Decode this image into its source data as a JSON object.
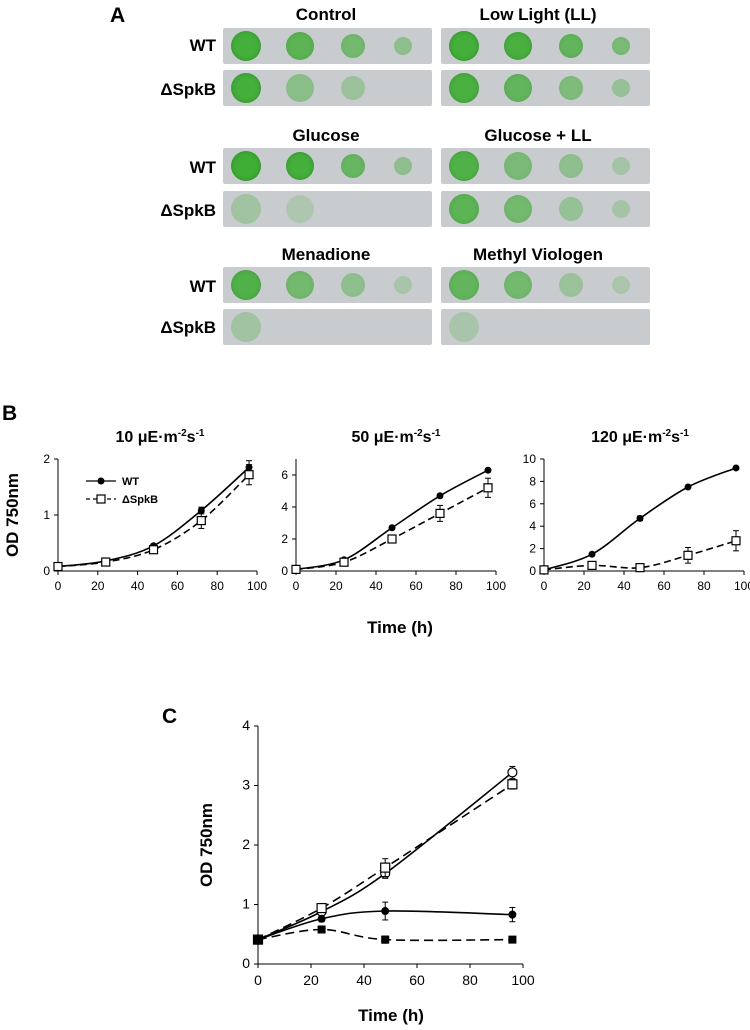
{
  "panel_a": {
    "letter": "A",
    "strains": [
      "WT",
      "ΔSpkB"
    ],
    "conditions": [
      "Control",
      "Low Light (LL)",
      "Glucose",
      "Glucose + LL",
      "Menadione",
      "Methyl Viologen"
    ],
    "growth": [
      [
        [
          0.95,
          0.75,
          0.55,
          0.3
        ],
        [
          0.95,
          0.35,
          0.2,
          0.0
        ]
      ],
      [
        [
          0.95,
          0.9,
          0.7,
          0.5
        ],
        [
          0.9,
          0.7,
          0.45,
          0.25
        ]
      ],
      [
        [
          1.0,
          0.95,
          0.65,
          0.3
        ],
        [
          0.15,
          0.05,
          0.0,
          0.0
        ]
      ],
      [
        [
          0.85,
          0.5,
          0.3,
          0.12
        ],
        [
          0.75,
          0.55,
          0.25,
          0.12
        ]
      ],
      [
        [
          0.85,
          0.55,
          0.3,
          0.1
        ],
        [
          0.15,
          0.0,
          0.0,
          0.0
        ]
      ],
      [
        [
          0.7,
          0.55,
          0.2,
          0.08
        ],
        [
          0.1,
          0.0,
          0.0,
          0.0
        ]
      ]
    ],
    "colors": {
      "spot": "#3fae35",
      "plate": "#c9ccce"
    }
  },
  "chart_data": [
    {
      "panel": "B",
      "type": "line",
      "title_parts": [
        "10 μE·m",
        "-2",
        "s",
        "-1"
      ],
      "xlabel": "Time (h)",
      "ylabel": "OD 750nm",
      "xlim": [
        0,
        100
      ],
      "ylim": [
        0,
        2
      ],
      "xticks": [
        0,
        20,
        40,
        60,
        80,
        100
      ],
      "yticks": [
        0,
        1,
        2
      ],
      "legend": [
        "WT",
        "ΔSpkB"
      ],
      "series": [
        {
          "name": "WT",
          "marker": "filled-circle",
          "dash": false,
          "x": [
            0,
            24,
            48,
            72,
            96
          ],
          "y": [
            0.08,
            0.18,
            0.45,
            1.08,
            1.85
          ],
          "err": [
            0.02,
            0.02,
            0.03,
            0.06,
            0.12
          ]
        },
        {
          "name": "ΔSpkB",
          "marker": "open-square",
          "dash": true,
          "x": [
            0,
            24,
            48,
            72,
            96
          ],
          "y": [
            0.08,
            0.16,
            0.38,
            0.9,
            1.72
          ],
          "err": [
            0.02,
            0.02,
            0.03,
            0.14,
            0.18
          ]
        }
      ]
    },
    {
      "panel": "B",
      "type": "line",
      "title_parts": [
        "50 μE·m",
        "-2",
        "s",
        "-1"
      ],
      "xlabel": "Time (h)",
      "ylabel": "",
      "xlim": [
        0,
        100
      ],
      "ylim": [
        0,
        7
      ],
      "xticks": [
        0,
        20,
        40,
        60,
        80,
        100
      ],
      "yticks": [
        0,
        2,
        4,
        6
      ],
      "series": [
        {
          "name": "WT",
          "marker": "filled-circle",
          "dash": false,
          "x": [
            0,
            24,
            48,
            72,
            96
          ],
          "y": [
            0.1,
            0.7,
            2.7,
            4.7,
            6.3
          ],
          "err": [
            0.05,
            0.05,
            0.1,
            0.1,
            0.1
          ]
        },
        {
          "name": "ΔSpkB",
          "marker": "open-square",
          "dash": true,
          "x": [
            0,
            24,
            48,
            72,
            96
          ],
          "y": [
            0.1,
            0.55,
            2.0,
            3.6,
            5.2
          ],
          "err": [
            0.05,
            0.1,
            0.2,
            0.5,
            0.6
          ]
        }
      ]
    },
    {
      "panel": "B",
      "type": "line",
      "title_parts": [
        "120 μE·m",
        "-2",
        "s",
        "-1"
      ],
      "xlabel": "Time (h)",
      "ylabel": "",
      "xlim": [
        0,
        100
      ],
      "ylim": [
        0,
        10
      ],
      "xticks": [
        0,
        20,
        40,
        60,
        80,
        100
      ],
      "yticks": [
        0,
        2,
        4,
        6,
        8,
        10
      ],
      "series": [
        {
          "name": "WT",
          "marker": "filled-circle",
          "dash": false,
          "x": [
            0,
            24,
            48,
            72,
            96
          ],
          "y": [
            0.1,
            1.5,
            4.7,
            7.5,
            9.2
          ],
          "err": [
            0.05,
            0.1,
            0.2,
            0.1,
            0.1
          ]
        },
        {
          "name": "ΔSpkB",
          "marker": "open-square",
          "dash": true,
          "x": [
            0,
            24,
            48,
            72,
            96
          ],
          "y": [
            0.1,
            0.5,
            0.3,
            1.4,
            2.7
          ],
          "err": [
            0.05,
            0.1,
            0.1,
            0.7,
            0.9
          ]
        }
      ]
    },
    {
      "panel": "C",
      "type": "line",
      "title_parts": [
        "",
        "",
        "",
        ""
      ],
      "xlabel": "Time (h)",
      "ylabel": "OD 750nm",
      "xlim": [
        0,
        100
      ],
      "ylim": [
        0,
        4
      ],
      "xticks": [
        0,
        20,
        40,
        60,
        80,
        100
      ],
      "yticks": [
        0,
        1,
        2,
        3,
        4
      ],
      "series": [
        {
          "name": "open-circle-solid",
          "marker": "open-circle",
          "dash": false,
          "x": [
            0,
            24,
            48,
            96
          ],
          "y": [
            0.41,
            0.88,
            1.52,
            3.22
          ],
          "err": [
            0.02,
            0.05,
            0.08,
            0.1
          ]
        },
        {
          "name": "open-square-dashed",
          "marker": "open-square",
          "dash": true,
          "x": [
            0,
            24,
            48,
            96
          ],
          "y": [
            0.41,
            0.94,
            1.62,
            3.02
          ],
          "err": [
            0.02,
            0.05,
            0.15,
            0.08
          ]
        },
        {
          "name": "filled-circle-solid",
          "marker": "filled-circle",
          "dash": false,
          "x": [
            0,
            24,
            48,
            96
          ],
          "y": [
            0.41,
            0.76,
            0.89,
            0.83
          ],
          "err": [
            0.02,
            0.05,
            0.15,
            0.12
          ]
        },
        {
          "name": "filled-square-dashed",
          "marker": "filled-square",
          "dash": true,
          "x": [
            0,
            24,
            48,
            96
          ],
          "y": [
            0.41,
            0.58,
            0.41,
            0.41
          ],
          "err": [
            0.02,
            0.03,
            0.06,
            0.02
          ]
        }
      ]
    }
  ],
  "panel_b_letter": "B",
  "panel_c_letter": "C"
}
